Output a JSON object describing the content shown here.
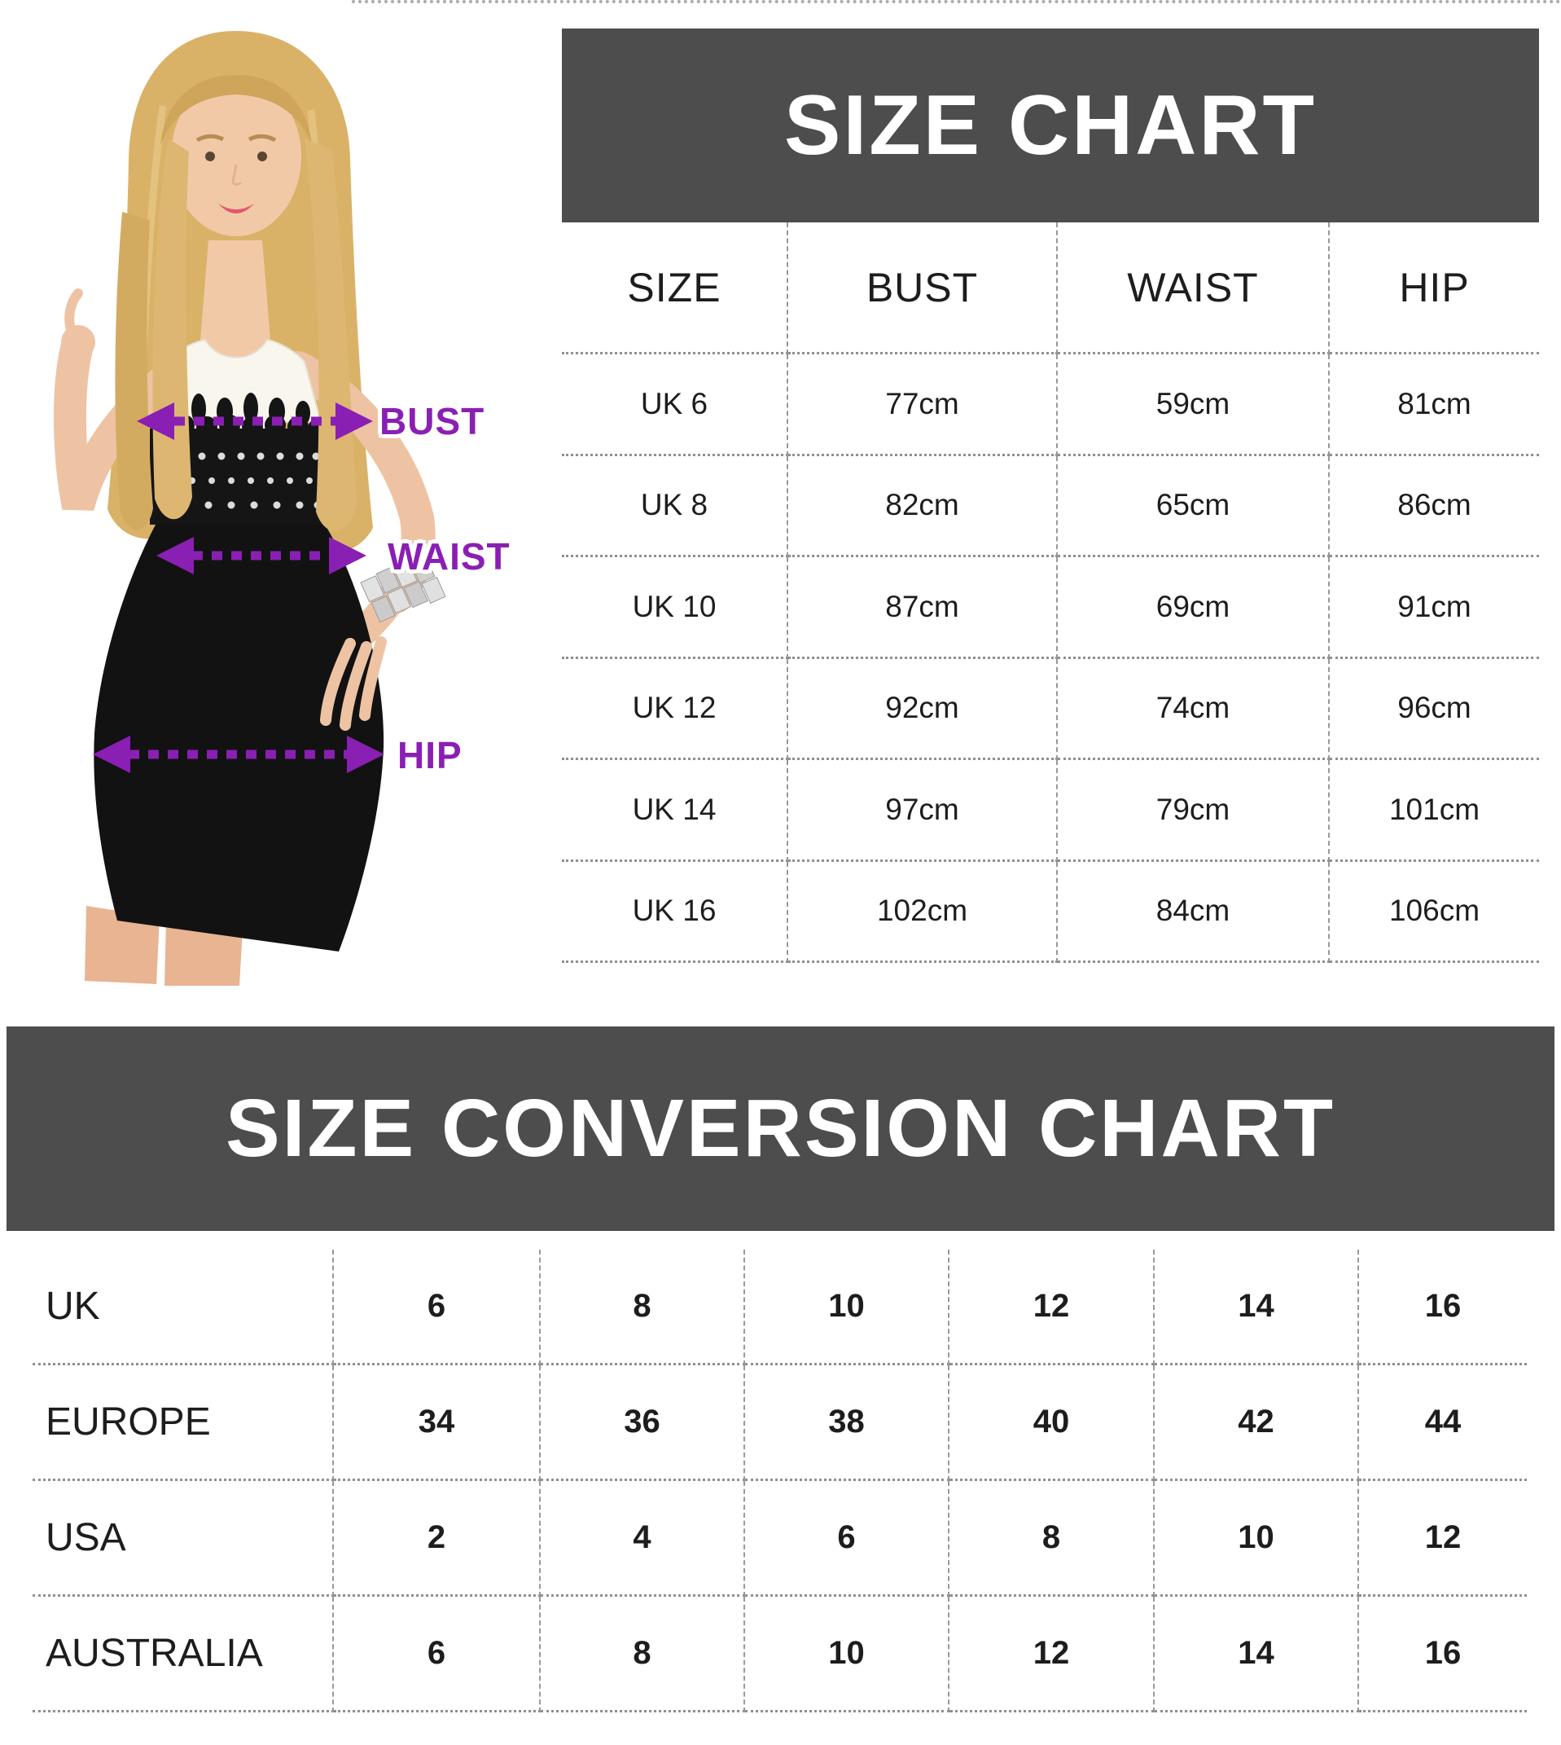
{
  "figure": {
    "labels": [
      "BUST",
      "WAIST",
      "HIP"
    ]
  },
  "colors": {
    "banner_background": "#4d4d4d",
    "banner_text": "#ffffff",
    "accent_purple": "#8a1fb3",
    "table_text": "#1d1d1d",
    "separator_gray": "#979797"
  },
  "chart_data": [
    {
      "type": "table",
      "title": "SIZE CHART",
      "columns": [
        "SIZE",
        "BUST",
        "WAIST",
        "HIP"
      ],
      "rows": [
        [
          "UK 6",
          "77cm",
          "59cm",
          "81cm"
        ],
        [
          "UK 8",
          "82cm",
          "65cm",
          "86cm"
        ],
        [
          "UK 10",
          "87cm",
          "69cm",
          "91cm"
        ],
        [
          "UK 12",
          "92cm",
          "74cm",
          "96cm"
        ],
        [
          "UK 14",
          "97cm",
          "79cm",
          "101cm"
        ],
        [
          "UK 16",
          "102cm",
          "84cm",
          "106cm"
        ]
      ]
    },
    {
      "type": "table",
      "title": "SIZE CONVERSION CHART",
      "rows": [
        [
          "UK",
          "6",
          "8",
          "10",
          "12",
          "14",
          "16"
        ],
        [
          "EUROPE",
          "34",
          "36",
          "38",
          "40",
          "42",
          "44"
        ],
        [
          "USA",
          "2",
          "4",
          "6",
          "8",
          "10",
          "12"
        ],
        [
          "AUSTRALIA",
          "6",
          "8",
          "10",
          "12",
          "14",
          "16"
        ]
      ]
    }
  ]
}
